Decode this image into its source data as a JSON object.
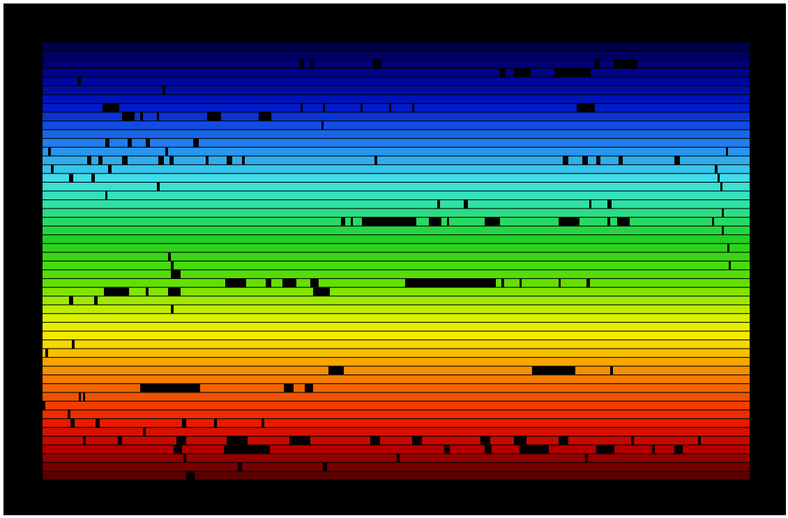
{
  "image": {
    "subject": "solar-spectrum-echelle-image",
    "background_color": "#000000",
    "band_count": 50,
    "color_stops": [
      {
        "t": 0.0,
        "color": "#00004a"
      },
      {
        "t": 0.05,
        "color": "#00007d"
      },
      {
        "t": 0.14,
        "color": "#0018c8"
      },
      {
        "t": 0.22,
        "color": "#1f78f0"
      },
      {
        "t": 0.31,
        "color": "#40e0e8"
      },
      {
        "t": 0.37,
        "color": "#30e0a0"
      },
      {
        "t": 0.45,
        "color": "#20d020"
      },
      {
        "t": 0.55,
        "color": "#60e000"
      },
      {
        "t": 0.63,
        "color": "#d8f000"
      },
      {
        "t": 0.68,
        "color": "#f8e800"
      },
      {
        "t": 0.74,
        "color": "#f8a000"
      },
      {
        "t": 0.81,
        "color": "#f05800"
      },
      {
        "t": 0.88,
        "color": "#e81800"
      },
      {
        "t": 0.94,
        "color": "#b00000"
      },
      {
        "t": 1.0,
        "color": "#580000"
      }
    ]
  }
}
